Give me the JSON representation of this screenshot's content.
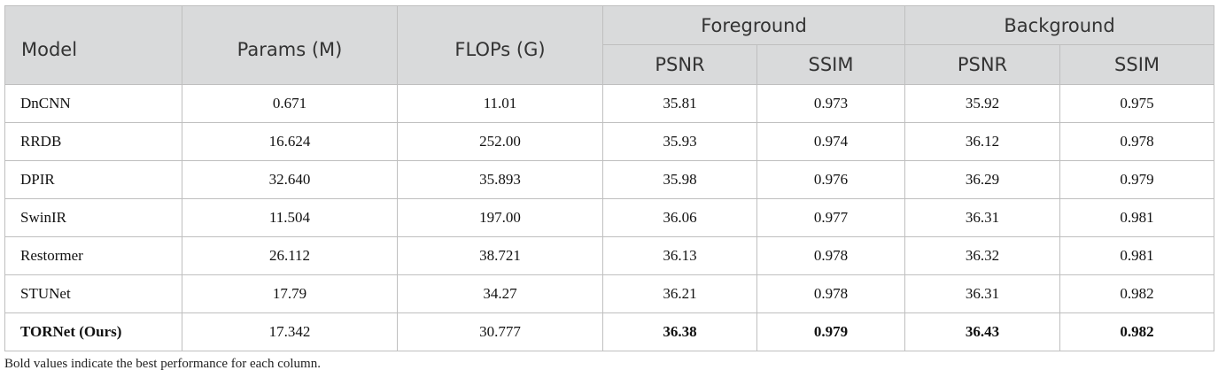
{
  "header": {
    "model": "Model",
    "params": "Params (M)",
    "flops": "FLOPs (G)",
    "foreground": "Foreground",
    "background": "Background",
    "fg_psnr": "PSNR",
    "fg_ssim": "SSIM",
    "bg_psnr": "PSNR",
    "bg_ssim": "SSIM"
  },
  "rows": [
    {
      "model": "DnCNN",
      "params": "0.671",
      "flops": "11.01",
      "fg_psnr": "35.81",
      "fg_ssim": "0.973",
      "bg_psnr": "35.92",
      "bg_ssim": "0.975"
    },
    {
      "model": "RRDB",
      "params": "16.624",
      "flops": "252.00",
      "fg_psnr": "35.93",
      "fg_ssim": "0.974",
      "bg_psnr": "36.12",
      "bg_ssim": "0.978"
    },
    {
      "model": "DPIR",
      "params": "32.640",
      "flops": "35.893",
      "fg_psnr": "35.98",
      "fg_ssim": "0.976",
      "bg_psnr": "36.29",
      "bg_ssim": "0.979"
    },
    {
      "model": "SwinIR",
      "params": "11.504",
      "flops": "197.00",
      "fg_psnr": "36.06",
      "fg_ssim": "0.977",
      "bg_psnr": "36.31",
      "bg_ssim": "0.981"
    },
    {
      "model": "Restormer",
      "params": "26.112",
      "flops": "38.721",
      "fg_psnr": "36.13",
      "fg_ssim": "0.978",
      "bg_psnr": "36.32",
      "bg_ssim": "0.981"
    },
    {
      "model": "STUNet",
      "params": "17.79",
      "flops": "34.27",
      "fg_psnr": "36.21",
      "fg_ssim": "0.978",
      "bg_psnr": "36.31",
      "bg_ssim": "0.982"
    },
    {
      "model": "TORNet (Ours)",
      "params": "17.342",
      "flops": "30.777",
      "fg_psnr": "36.38",
      "fg_ssim": "0.979",
      "bg_psnr": "36.43",
      "bg_ssim": "0.982"
    }
  ],
  "footnote": "Bold values indicate the best performance for each column."
}
